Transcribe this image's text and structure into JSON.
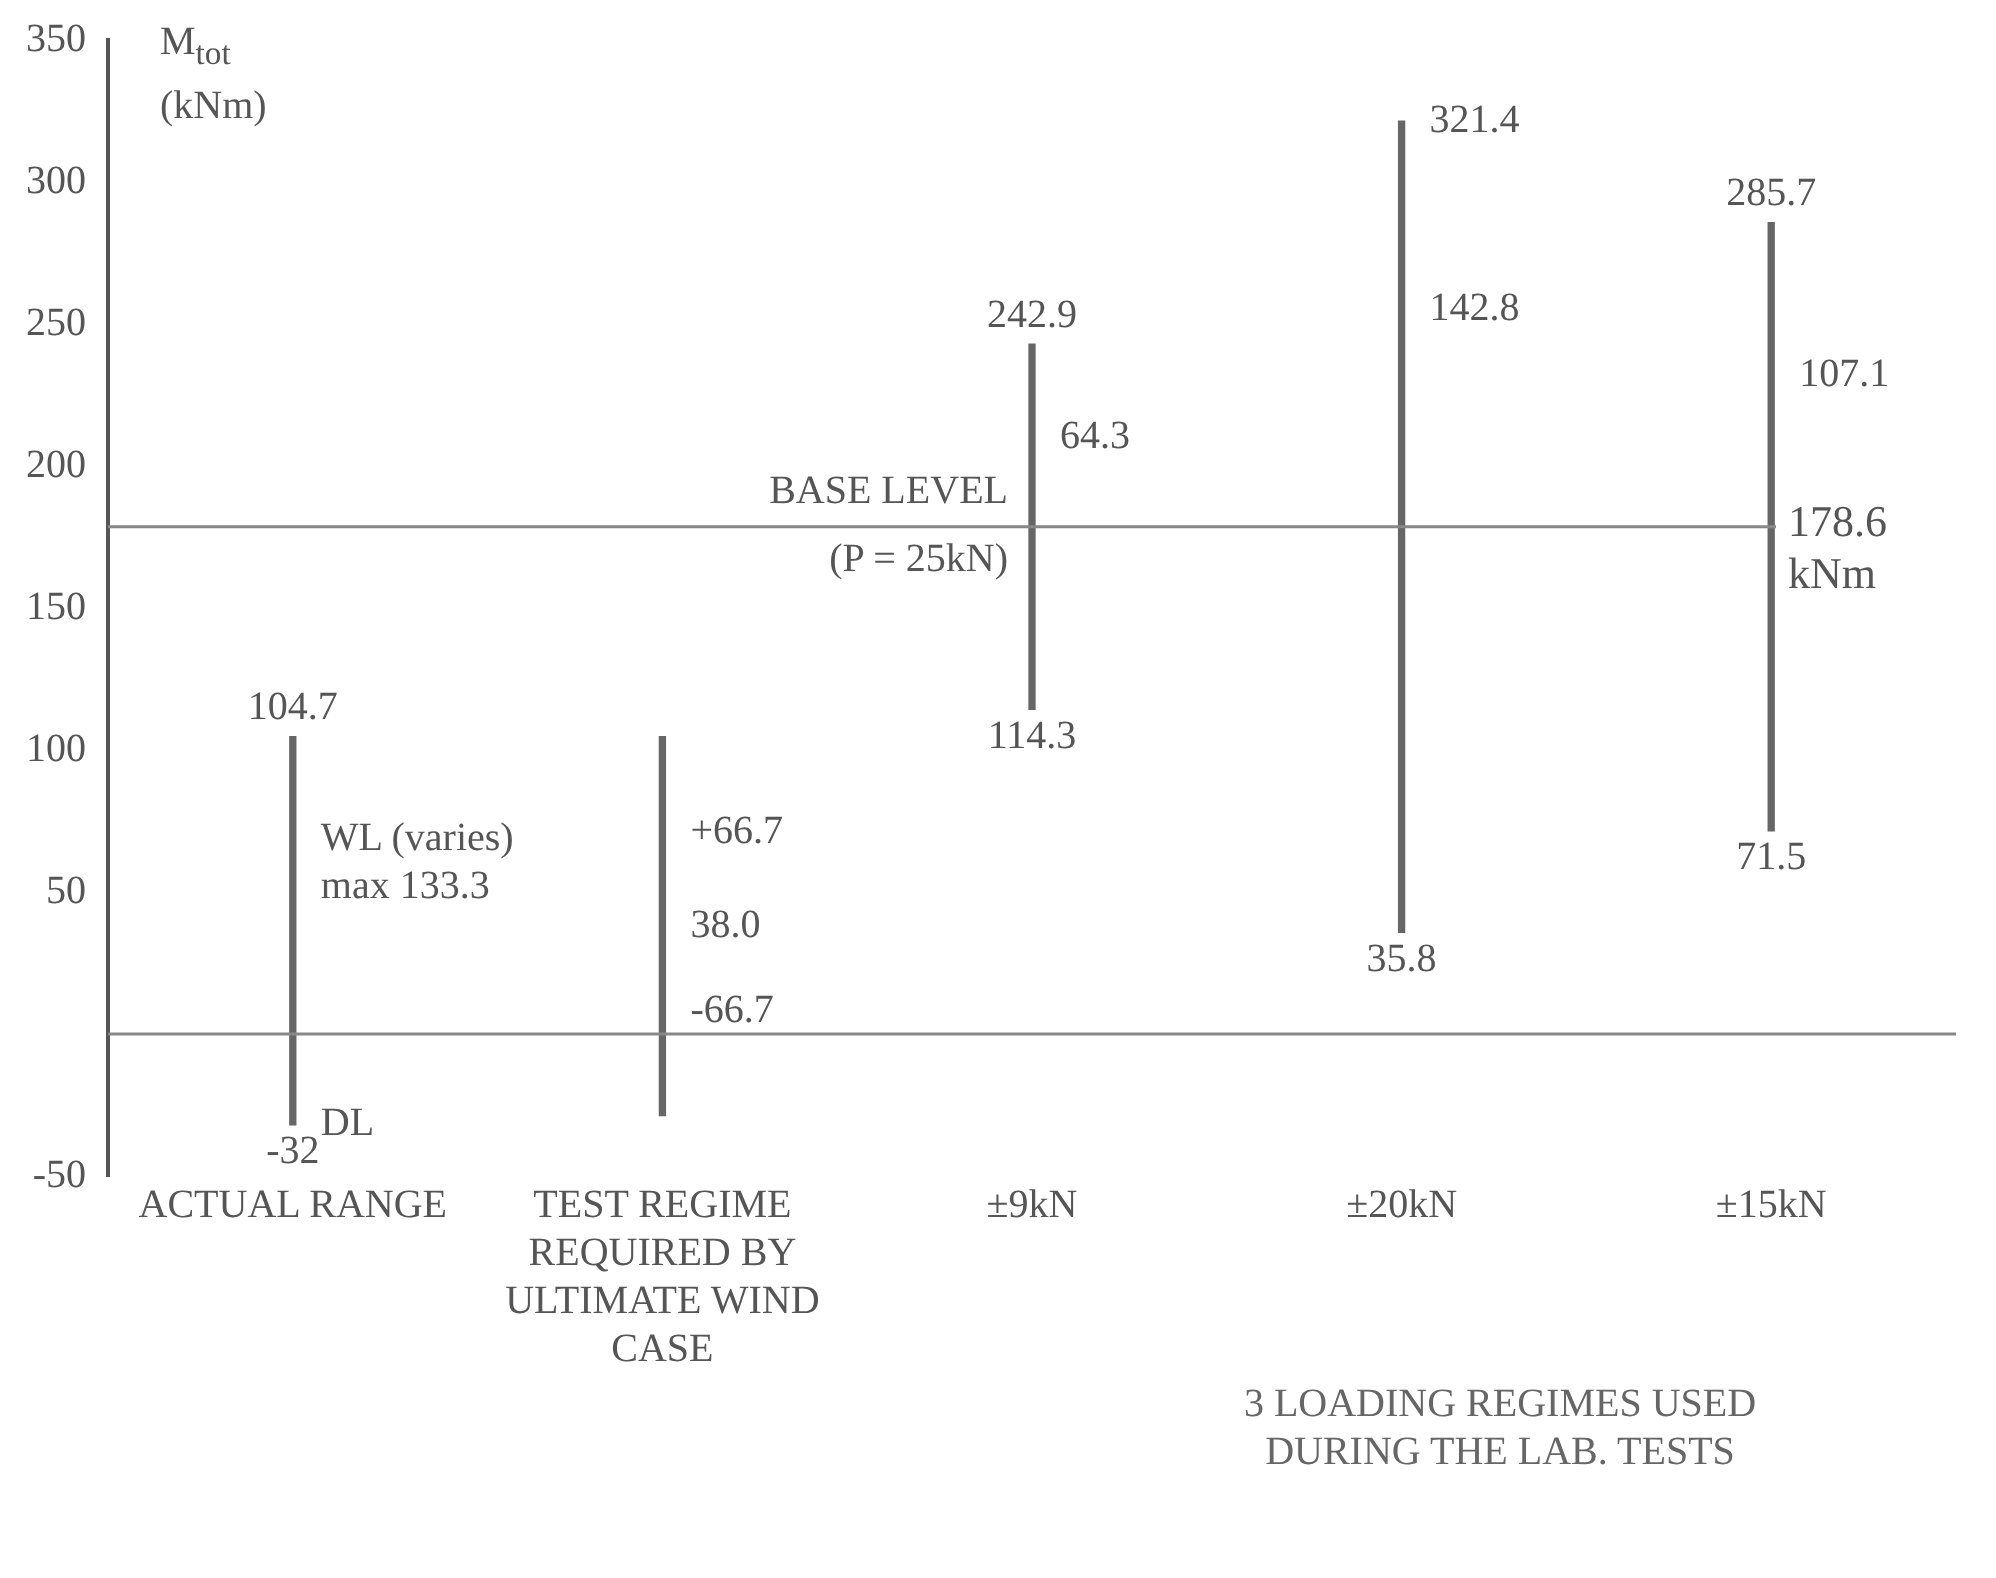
{
  "chart_data": {
    "type": "bar",
    "ylabel": "M$_{tot}$ (kNm)",
    "categories": [
      "ACTUAL RANGE",
      "TEST REGIME REQUIRED BY ULTIMATE WIND CASE",
      "±9kN",
      "±20kN",
      "±15kN"
    ],
    "base": [
      -32,
      -28.7,
      114.3,
      35.8,
      71.5
    ],
    "values": [
      136.7,
      133.4,
      128.6,
      285.6,
      214.2
    ],
    "color": "#666666",
    "ylim": [
      -50,
      350
    ],
    "yticks": [
      -50,
      {
        "value": 0,
        "label": null
      },
      50,
      100,
      150,
      200,
      250,
      300,
      350
    ],
    "grid": false,
    "legend": false,
    "ref_lines": [
      {
        "axis": "y",
        "value": 0,
        "label": null
      },
      {
        "axis": "y",
        "value": 178.6,
        "label": "178.6 kNm"
      }
    ],
    "annotations": [
      {
        "text": "104.7",
        "x": "ACTUAL RANGE",
        "y": 104.7
      },
      {
        "text": "-32",
        "x": "ACTUAL RANGE",
        "y": -32
      },
      {
        "text": "DL",
        "x": "ACTUAL RANGE",
        "y": -32
      },
      {
        "text": "WL (varies) max 133.3",
        "x": "ACTUAL RANGE",
        "y": 60
      },
      {
        "text": "+66.7",
        "x": "TEST REGIME REQUIRED BY ULTIMATE WIND CASE",
        "y": 71
      },
      {
        "text": "38.0",
        "x": "TEST REGIME REQUIRED BY ULTIMATE WIND CASE",
        "y": 38
      },
      {
        "text": "-66.7",
        "x": "TEST REGIME REQUIRED BY ULTIMATE WIND CASE",
        "y": 8
      },
      {
        "text": "242.9",
        "x": "±9kN",
        "y": 242.9
      },
      {
        "text": "64.3",
        "x": "±9kN",
        "y": 210
      },
      {
        "text": "BASE LEVEL (P = 25kN)",
        "x": "±9kN",
        "y": 178.6
      },
      {
        "text": "114.3",
        "x": "±9kN",
        "y": 114.3
      },
      {
        "text": "321.4",
        "x": "±20kN",
        "y": 321.4
      },
      {
        "text": "142.8",
        "x": "±20kN",
        "y": 255
      },
      {
        "text": "35.8",
        "x": "±20kN",
        "y": 35.8
      },
      {
        "text": "285.7",
        "x": "±15kN",
        "y": 285.7
      },
      {
        "text": "107.1",
        "x": "±15kN",
        "y": 232
      },
      {
        "text": "71.5",
        "x": "±15kN",
        "y": 71.5
      },
      "3 LOADING REGIMES USED DURING THE LAB. TESTS"
    ]
  }
}
